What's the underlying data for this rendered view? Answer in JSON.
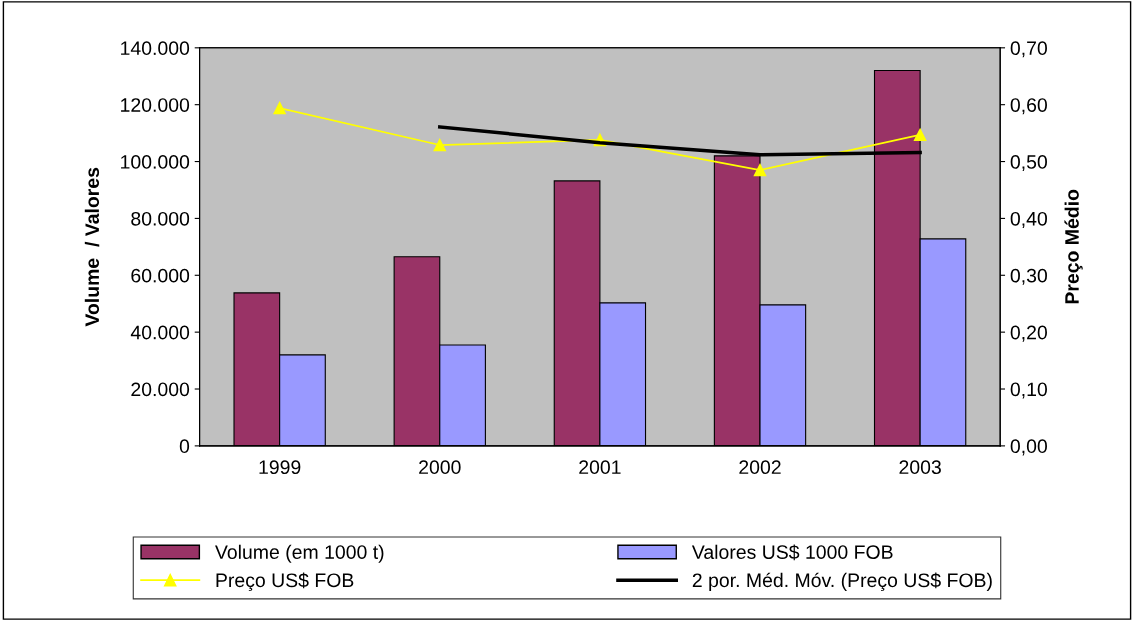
{
  "chart_data": {
    "type": "bar",
    "ylabel": "Volume  / Valores",
    "y2label": "Preço Médio",
    "categories": [
      "1999",
      "2000",
      "2001",
      "2002",
      "2003"
    ],
    "series": [
      {
        "name": "Volume (em 1000 t)",
        "color": "#993366",
        "values": [
          53800,
          66500,
          93200,
          102000,
          132000
        ]
      },
      {
        "name": "Valores US$ 1000 FOB",
        "color": "#9999ff",
        "values": [
          32000,
          35500,
          50300,
          49600,
          72800
        ]
      },
      {
        "name": "Preço US$ FOB",
        "type": "line",
        "axis": "y2",
        "color": "#ffff00",
        "marker": "triangle",
        "values": [
          0.594,
          0.529,
          0.538,
          0.485,
          0.547
        ]
      },
      {
        "name": "2 por. Méd. Móv. (Preço US$ FOB)",
        "type": "line",
        "axis": "y2",
        "color": "#000000",
        "marker": "none",
        "values": [
          null,
          0.561,
          0.533,
          0.512,
          0.516
        ]
      }
    ],
    "ylim": [
      0,
      140000
    ],
    "yticks": [
      {
        "value": 0,
        "label": "0"
      },
      {
        "value": 20000,
        "label": "20.000"
      },
      {
        "value": 40000,
        "label": "40.000"
      },
      {
        "value": 60000,
        "label": "60.000"
      },
      {
        "value": 80000,
        "label": "80.000"
      },
      {
        "value": 100000,
        "label": "100.000"
      },
      {
        "value": 120000,
        "label": "120.000"
      },
      {
        "value": 140000,
        "label": "140.000"
      }
    ],
    "y2lim": [
      0,
      0.7
    ],
    "y2ticks": [
      {
        "value": 0,
        "label": "0,00"
      },
      {
        "value": 0.1,
        "label": "0,10"
      },
      {
        "value": 0.2,
        "label": "0,20"
      },
      {
        "value": 0.3,
        "label": "0,30"
      },
      {
        "value": 0.4,
        "label": "0,40"
      },
      {
        "value": 0.5,
        "label": "0,50"
      },
      {
        "value": 0.6,
        "label": "0,60"
      },
      {
        "value": 0.7,
        "label": "0,70"
      }
    ],
    "grid": false,
    "legend": "bottom"
  }
}
